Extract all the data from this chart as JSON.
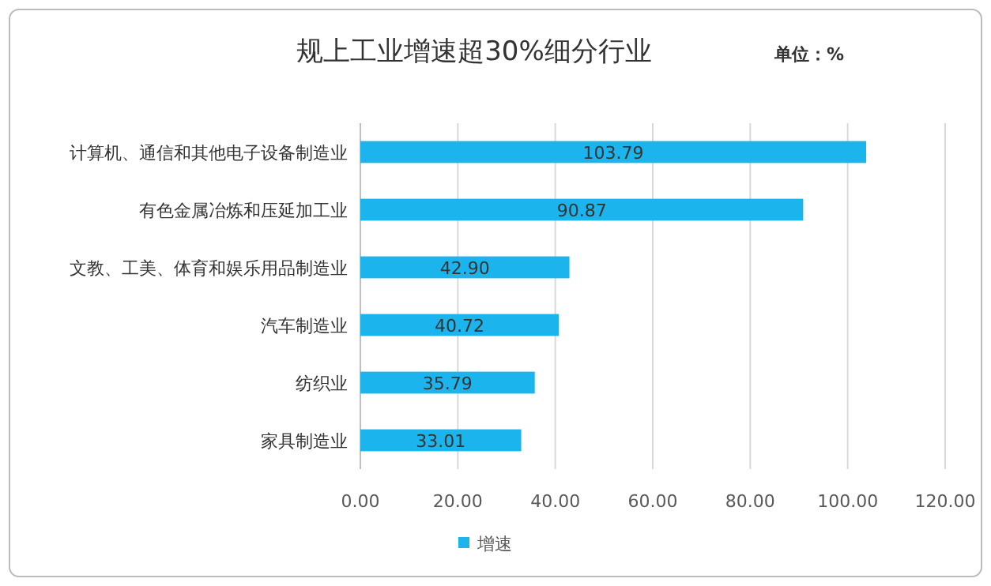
{
  "chart_data": {
    "type": "bar",
    "orientation": "horizontal",
    "title": "规上工业增速超30%细分行业",
    "annotations": [
      "单位：%"
    ],
    "categories": [
      "计算机、通信和其他电子设备制造业",
      "有色金属冶炼和压延加工业",
      "文教、工美、体育和娱乐用品制造业",
      "汽车制造业",
      "纺织业",
      "家具制造业"
    ],
    "series": [
      {
        "name": "增速",
        "color": "#1cb4ec",
        "values": [
          103.79,
          90.87,
          42.9,
          40.72,
          35.79,
          33.01
        ],
        "value_labels": [
          "103.79",
          "90.87",
          "42.90",
          "40.72",
          "35.79",
          "33.01"
        ]
      }
    ],
    "xlim": [
      0,
      120
    ],
    "xticks": [
      {
        "value": 0,
        "label": "0.00"
      },
      {
        "value": 20,
        "label": "20.00"
      },
      {
        "value": 40,
        "label": "40.00"
      },
      {
        "value": 60,
        "label": "60.00"
      },
      {
        "value": 80,
        "label": "80.00"
      },
      {
        "value": 100,
        "label": "100.00"
      },
      {
        "value": 120,
        "label": "120.00"
      }
    ],
    "grid": "x",
    "legend": "bottom"
  }
}
